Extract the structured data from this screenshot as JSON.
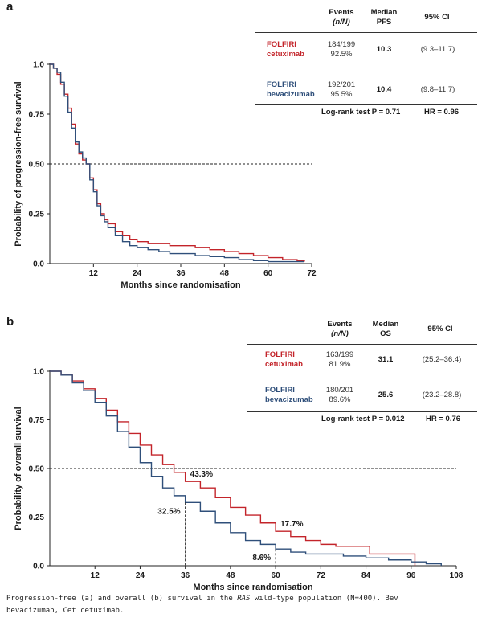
{
  "panels": {
    "a": {
      "letter": "a",
      "table": {
        "headers": {
          "events": "Events",
          "events_sub": "(n/N)",
          "median": "Median",
          "median_sub": "PFS",
          "ci": "95% CI"
        },
        "rows": [
          {
            "arm_line1": "FOLFIRI",
            "arm_line2": "cetuximab",
            "events_frac": "184/199",
            "events_pct": "92.5%",
            "median": "10.3",
            "ci": "(9.3–11.7)"
          },
          {
            "arm_line1": "FOLFIRI",
            "arm_line2": "bevacizumab",
            "events_frac": "192/201",
            "events_pct": "95.5%",
            "median": "10.4",
            "ci": "(9.8–11.7)"
          }
        ],
        "footer_logrank": "Log-rank test P = 0.71",
        "footer_hr": "HR = 0.96"
      }
    },
    "b": {
      "letter": "b",
      "table": {
        "headers": {
          "events": "Events",
          "events_sub": "(n/N)",
          "median": "Median",
          "median_sub": "OS",
          "ci": "95% CI"
        },
        "rows": [
          {
            "arm_line1": "FOLFIRI",
            "arm_line2": "cetuximab",
            "events_frac": "163/199",
            "events_pct": "81.9%",
            "median": "31.1",
            "ci": "(25.2–36.4)"
          },
          {
            "arm_line1": "FOLFIRI",
            "arm_line2": "bevacizumab",
            "events_frac": "180/201",
            "events_pct": "89.6%",
            "median": "25.6",
            "ci": "(23.2–28.8)"
          }
        ],
        "footer_logrank": "Log-rank test P = 0.012",
        "footer_hr": "HR = 0.76"
      }
    }
  },
  "caption": {
    "part1": "Progression-free (a) and overall (b) survival in the ",
    "ras": "RAS",
    "part2": " wild-type population (N=400). Bev",
    "line2": "bevacizumab, Cet cetuximab."
  },
  "colors": {
    "cetuximab": "#c3242a",
    "bevacizumab": "#2f4f7a"
  },
  "chart_data": [
    {
      "type": "line",
      "title": "",
      "xlabel": "Months since randomisation",
      "ylabel": "Probability of progression-free survival",
      "xlim": [
        0,
        72
      ],
      "ylim": [
        0,
        1
      ],
      "xticks": [
        12,
        24,
        36,
        48,
        60,
        72
      ],
      "yticks": [
        "0.0",
        "0.25",
        "0.50",
        "0.75",
        "1.0"
      ],
      "reference_line": 0.5,
      "series": [
        {
          "name": "FOLFIRI cetuximab",
          "color": "#c3242a",
          "x": [
            0,
            1,
            2,
            3,
            4,
            5,
            6,
            7,
            8,
            9,
            10,
            10.3,
            11,
            12,
            13,
            14,
            15,
            16,
            18,
            20,
            22,
            24,
            27,
            30,
            33,
            36,
            40,
            44,
            48,
            52,
            56,
            60,
            64,
            68,
            70
          ],
          "y": [
            1.0,
            0.98,
            0.95,
            0.9,
            0.85,
            0.78,
            0.7,
            0.6,
            0.55,
            0.52,
            0.5,
            0.5,
            0.43,
            0.37,
            0.3,
            0.25,
            0.22,
            0.2,
            0.16,
            0.14,
            0.12,
            0.11,
            0.1,
            0.1,
            0.09,
            0.09,
            0.08,
            0.07,
            0.06,
            0.05,
            0.04,
            0.03,
            0.02,
            0.015,
            0.01
          ]
        },
        {
          "name": "FOLFIRI bevacizumab",
          "color": "#2f4f7a",
          "x": [
            0,
            1,
            2,
            3,
            4,
            5,
            6,
            7,
            8,
            9,
            10,
            10.4,
            11,
            12,
            13,
            14,
            15,
            16,
            18,
            20,
            22,
            24,
            27,
            30,
            33,
            36,
            40,
            44,
            48,
            52,
            56,
            60,
            64,
            68,
            70
          ],
          "y": [
            1.0,
            0.98,
            0.96,
            0.91,
            0.84,
            0.76,
            0.68,
            0.61,
            0.56,
            0.53,
            0.5,
            0.5,
            0.42,
            0.36,
            0.29,
            0.24,
            0.21,
            0.18,
            0.14,
            0.11,
            0.09,
            0.08,
            0.07,
            0.06,
            0.05,
            0.05,
            0.04,
            0.035,
            0.03,
            0.02,
            0.015,
            0.01,
            0.01,
            0.01,
            0.01
          ]
        }
      ]
    },
    {
      "type": "line",
      "title": "",
      "xlabel": "Months since randomisation",
      "ylabel": "Probability of overall survival",
      "xlim": [
        0,
        108
      ],
      "ylim": [
        0,
        1
      ],
      "xticks": [
        12,
        24,
        36,
        48,
        60,
        72,
        84,
        96,
        108
      ],
      "yticks": [
        "0.0",
        "0.25",
        "0.50",
        "0.75",
        "1.0"
      ],
      "reference_line": 0.5,
      "annotations": [
        {
          "text": "43.3%",
          "x": 36,
          "y": 0.433,
          "series": "FOLFIRI cetuximab"
        },
        {
          "text": "32.5%",
          "x": 36,
          "y": 0.325,
          "series": "FOLFIRI bevacizumab"
        },
        {
          "text": "17.7%",
          "x": 60,
          "y": 0.177,
          "series": "FOLFIRI cetuximab"
        },
        {
          "text": "8.6%",
          "x": 60,
          "y": 0.086,
          "series": "FOLFIRI bevacizumab"
        }
      ],
      "series": [
        {
          "name": "FOLFIRI cetuximab",
          "color": "#c3242a",
          "x": [
            0,
            3,
            6,
            9,
            12,
            15,
            18,
            21,
            24,
            27,
            30,
            33,
            36,
            40,
            44,
            48,
            52,
            56,
            60,
            64,
            68,
            72,
            76,
            80,
            84,
            85,
            97
          ],
          "y": [
            1.0,
            0.98,
            0.95,
            0.91,
            0.86,
            0.8,
            0.74,
            0.68,
            0.62,
            0.57,
            0.52,
            0.48,
            0.433,
            0.4,
            0.35,
            0.3,
            0.26,
            0.22,
            0.177,
            0.15,
            0.13,
            0.11,
            0.1,
            0.1,
            0.1,
            0.06,
            0.0
          ]
        },
        {
          "name": "FOLFIRI bevacizumab",
          "color": "#2f4f7a",
          "x": [
            0,
            3,
            6,
            9,
            12,
            15,
            18,
            21,
            24,
            27,
            30,
            33,
            36,
            40,
            44,
            48,
            52,
            56,
            60,
            64,
            68,
            72,
            78,
            84,
            90,
            96,
            100,
            104
          ],
          "y": [
            1.0,
            0.98,
            0.94,
            0.9,
            0.84,
            0.77,
            0.69,
            0.61,
            0.53,
            0.46,
            0.4,
            0.36,
            0.325,
            0.28,
            0.22,
            0.17,
            0.13,
            0.11,
            0.086,
            0.07,
            0.06,
            0.06,
            0.05,
            0.04,
            0.03,
            0.02,
            0.01,
            0.0
          ]
        }
      ]
    }
  ]
}
